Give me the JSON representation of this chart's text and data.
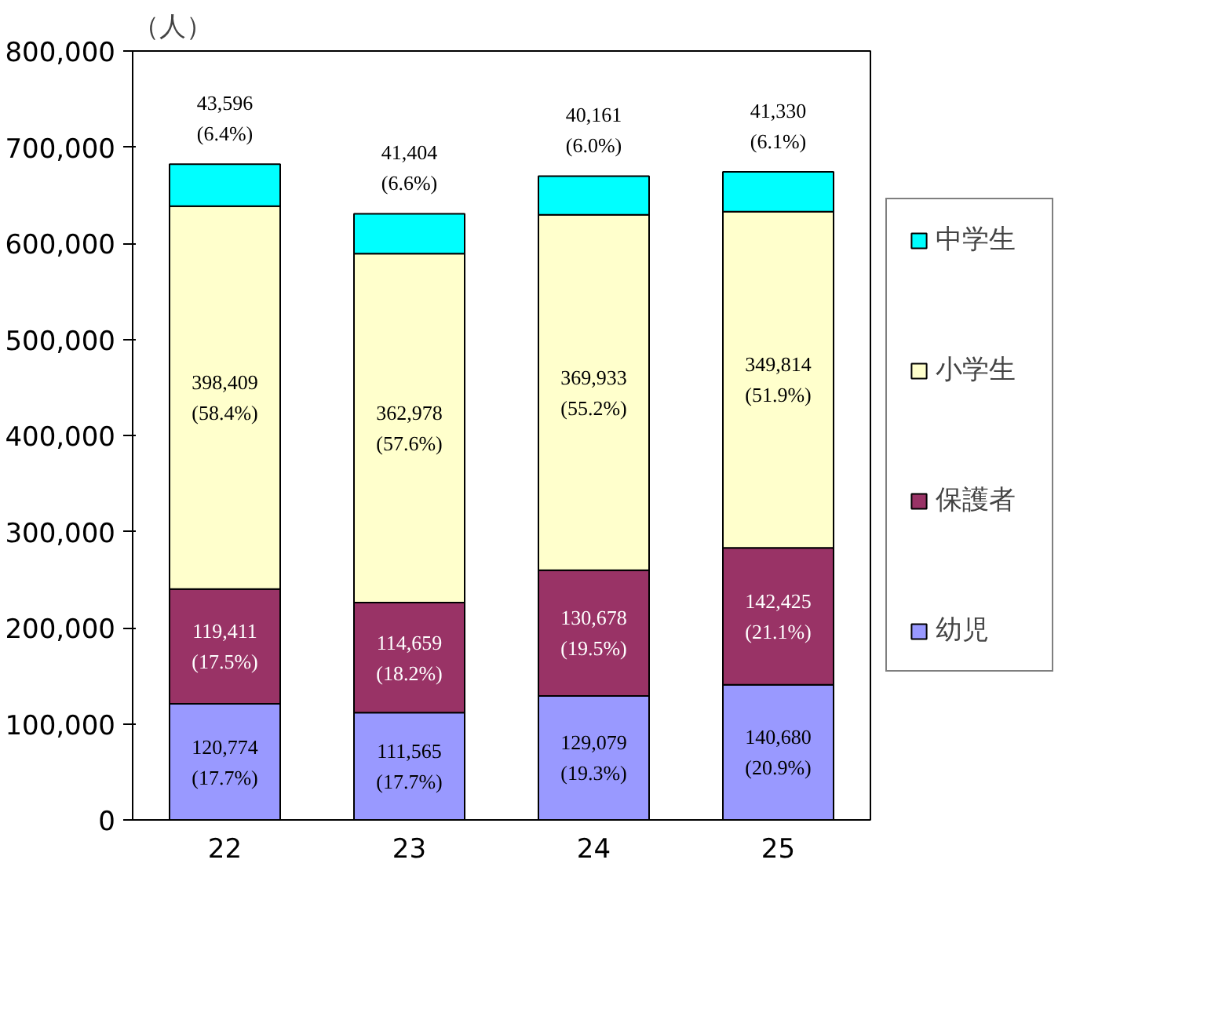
{
  "chart_data": {
    "type": "bar",
    "stacked": true,
    "ylabel": "（人）",
    "categories": [
      "22",
      "23",
      "24",
      "25"
    ],
    "ylim": [
      0,
      800000
    ],
    "yticks": [
      {
        "value": 0,
        "label": "0"
      },
      {
        "value": 100000,
        "label": "100,000"
      },
      {
        "value": 200000,
        "label": "200,000"
      },
      {
        "value": 300000,
        "label": "300,000"
      },
      {
        "value": 400000,
        "label": "400,000"
      },
      {
        "value": 500000,
        "label": "500,000"
      },
      {
        "value": 600000,
        "label": "600,000"
      },
      {
        "value": 700000,
        "label": "700,000"
      },
      {
        "value": 800000,
        "label": "800,000"
      }
    ],
    "grid": false,
    "legend": "right",
    "series": [
      {
        "name": "幼児",
        "color": "#9999ff",
        "values": [
          120774,
          111565,
          129079,
          140680
        ],
        "value_labels": [
          "120,774\n(17.7%)",
          "111,565\n(17.7%)",
          "129,079\n(19.3%)",
          "140,680\n(20.9%)"
        ]
      },
      {
        "name": "保護者",
        "color": "#993366",
        "values": [
          119411,
          114659,
          130678,
          142425
        ],
        "value_labels": [
          "119,411\n(17.5%)",
          "114,659\n(18.2%)",
          "130,678\n(19.5%)",
          "142,425\n(21.1%)"
        ]
      },
      {
        "name": "小学生",
        "color": "#ffffcc",
        "values": [
          398409,
          362978,
          369933,
          349814
        ],
        "value_labels": [
          "398,409\n(58.4%)",
          "362,978\n(57.6%)",
          "369,933\n(55.2%)",
          "349,814\n(51.9%)"
        ]
      },
      {
        "name": "中学生",
        "color": "#00ffff",
        "values": [
          43596,
          41404,
          40161,
          41330
        ],
        "value_labels": [
          "43,596\n(6.4%)",
          "41,404\n(6.6%)",
          "40,161\n(6.0%)",
          "41,330\n(6.1%)"
        ]
      }
    ]
  }
}
